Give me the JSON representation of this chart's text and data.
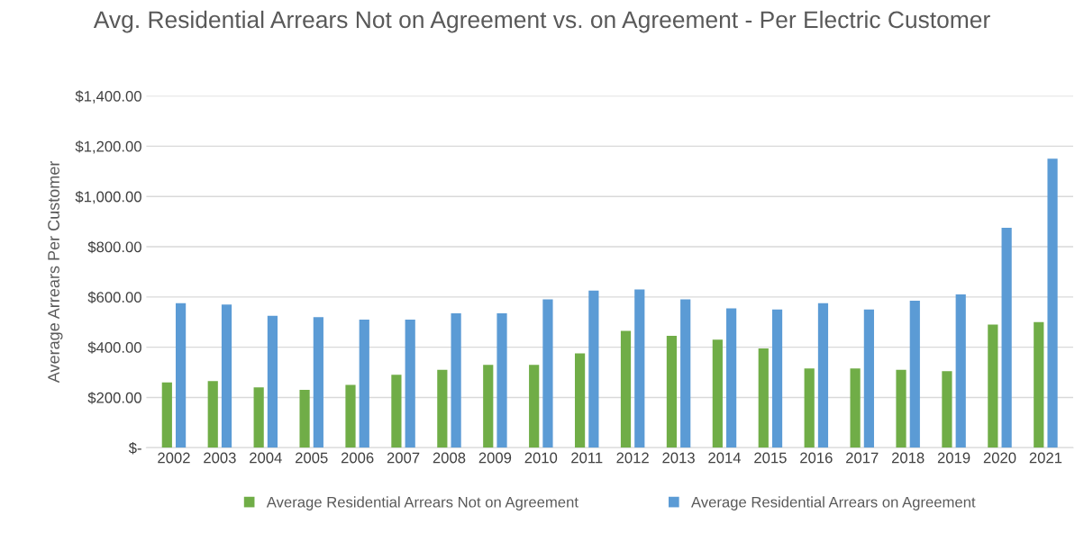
{
  "chart_data": {
    "type": "bar",
    "title": "Avg. Residential Arrears Not on Agreement vs. on Agreement - Per Electric Customer",
    "ylabel": "Average Arrears Per Customer",
    "categories": [
      "2002",
      "2003",
      "2004",
      "2005",
      "2006",
      "2007",
      "2008",
      "2009",
      "2010",
      "2011",
      "2012",
      "2013",
      "2014",
      "2015",
      "2016",
      "2017",
      "2018",
      "2019",
      "2020",
      "2021"
    ],
    "series": [
      {
        "name": "Average Residential Arrears Not on Agreement",
        "color": "#70ad47",
        "values": [
          260,
          265,
          240,
          230,
          250,
          290,
          310,
          330,
          330,
          375,
          465,
          445,
          430,
          395,
          315,
          315,
          310,
          305,
          490,
          500
        ]
      },
      {
        "name": "Average Residential Arrears on Agreement",
        "color": "#5b9bd5",
        "values": [
          575,
          570,
          525,
          520,
          510,
          510,
          535,
          535,
          590,
          625,
          630,
          590,
          555,
          550,
          575,
          550,
          585,
          610,
          875,
          1150
        ]
      }
    ],
    "ylim": [
      0,
      1400
    ],
    "yticks": [
      {
        "value": 0,
        "label": "$-"
      },
      {
        "value": 200,
        "label": "$200.00"
      },
      {
        "value": 400,
        "label": "$400.00"
      },
      {
        "value": 600,
        "label": "$600.00"
      },
      {
        "value": 800,
        "label": "$800.00"
      },
      {
        "value": 1000,
        "label": "$1,000.00"
      },
      {
        "value": 1200,
        "label": "$1,200.00"
      },
      {
        "value": 1400,
        "label": "$1,400.00"
      }
    ],
    "grid": "y",
    "legend": "bottom"
  }
}
